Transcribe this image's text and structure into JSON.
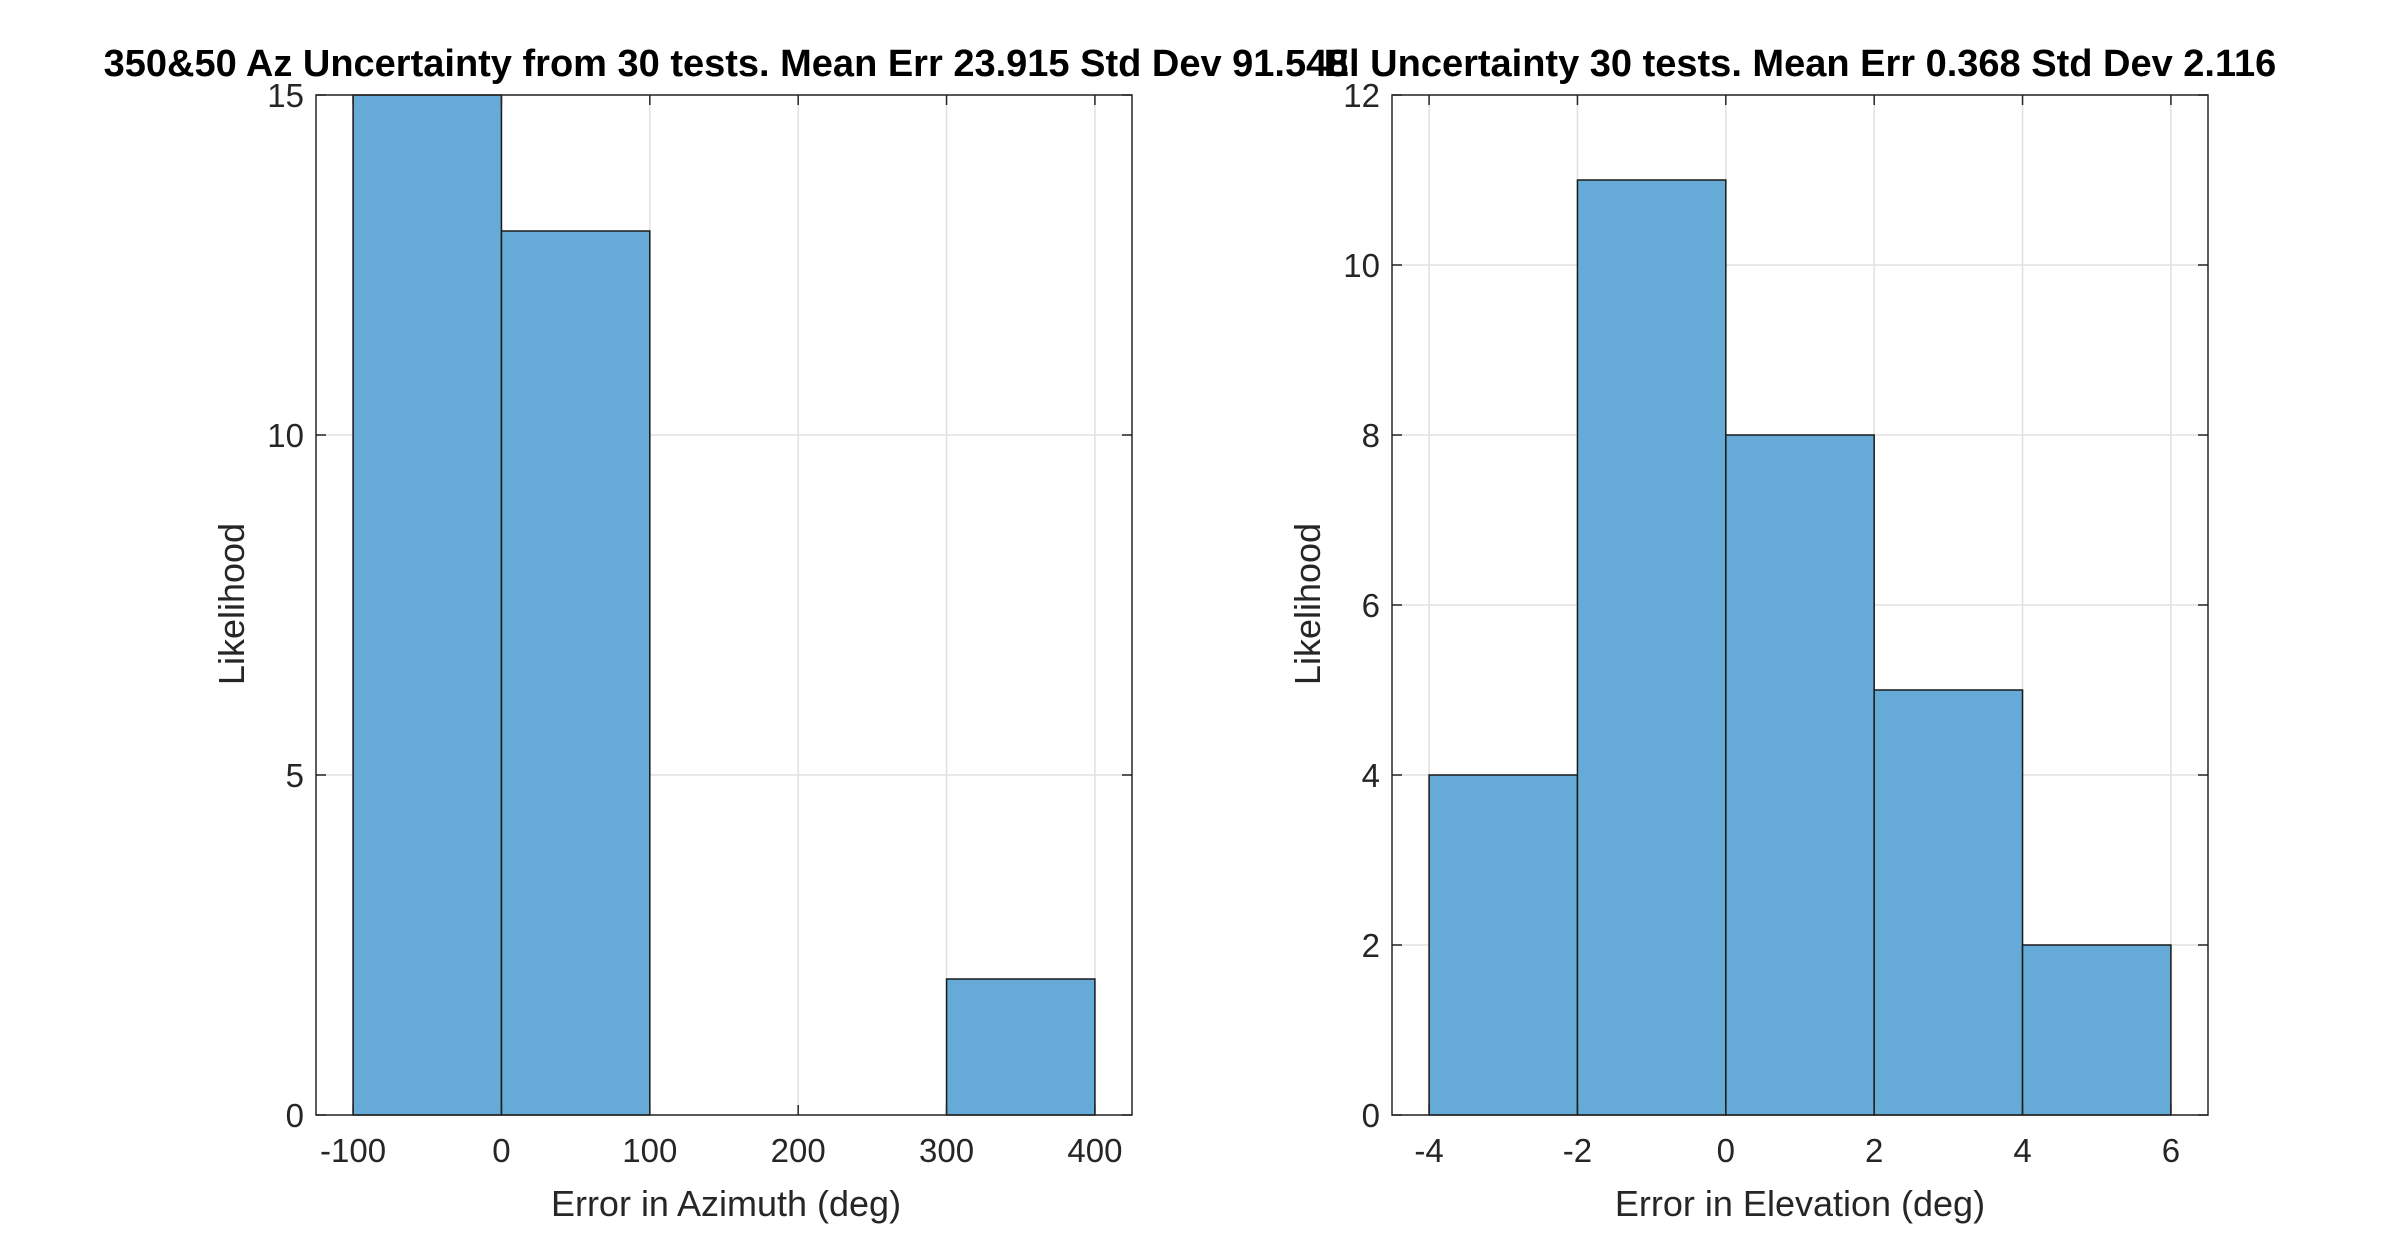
{
  "chart_data": [
    {
      "type": "bar",
      "title": "350&50 Az Uncertainty from 30 tests. Mean Err 23.915 Std Dev 91.548",
      "xlabel": "Error in Azimuth (deg)",
      "ylabel": "Likelihood",
      "bin_edges": [
        -100,
        0,
        100,
        200,
        300,
        400
      ],
      "values": [
        15,
        13,
        0,
        0,
        2
      ],
      "xlim": [
        -125,
        425
      ],
      "ylim": [
        0,
        15
      ],
      "xticks": [
        -100,
        0,
        100,
        200,
        300,
        400
      ],
      "xtick_labels": [
        "-100",
        "0",
        "100",
        "200",
        "300",
        "400"
      ],
      "yticks": [
        0,
        5,
        10,
        15
      ],
      "ytick_labels": [
        "0",
        "5",
        "10",
        "15"
      ],
      "grid": true,
      "bar_color": "#66aad7"
    },
    {
      "type": "bar",
      "title": "El Uncertainty 30 tests. Mean Err 0.368 Std Dev 2.116",
      "xlabel": "Error in Elevation (deg)",
      "ylabel": "Likelihood",
      "bin_edges": [
        -4,
        -2,
        0,
        2,
        4,
        6
      ],
      "values": [
        4,
        11,
        8,
        5,
        2
      ],
      "xlim": [
        -4.5,
        6.5
      ],
      "ylim": [
        0,
        12
      ],
      "xticks": [
        -4,
        -2,
        0,
        2,
        4,
        6
      ],
      "xtick_labels": [
        "-4",
        "-2",
        "0",
        "2",
        "4",
        "6"
      ],
      "yticks": [
        0,
        2,
        4,
        6,
        8,
        10,
        12
      ],
      "ytick_labels": [
        "0",
        "2",
        "4",
        "6",
        "8",
        "10",
        "12"
      ],
      "grid": true,
      "bar_color": "#66aad7"
    }
  ]
}
